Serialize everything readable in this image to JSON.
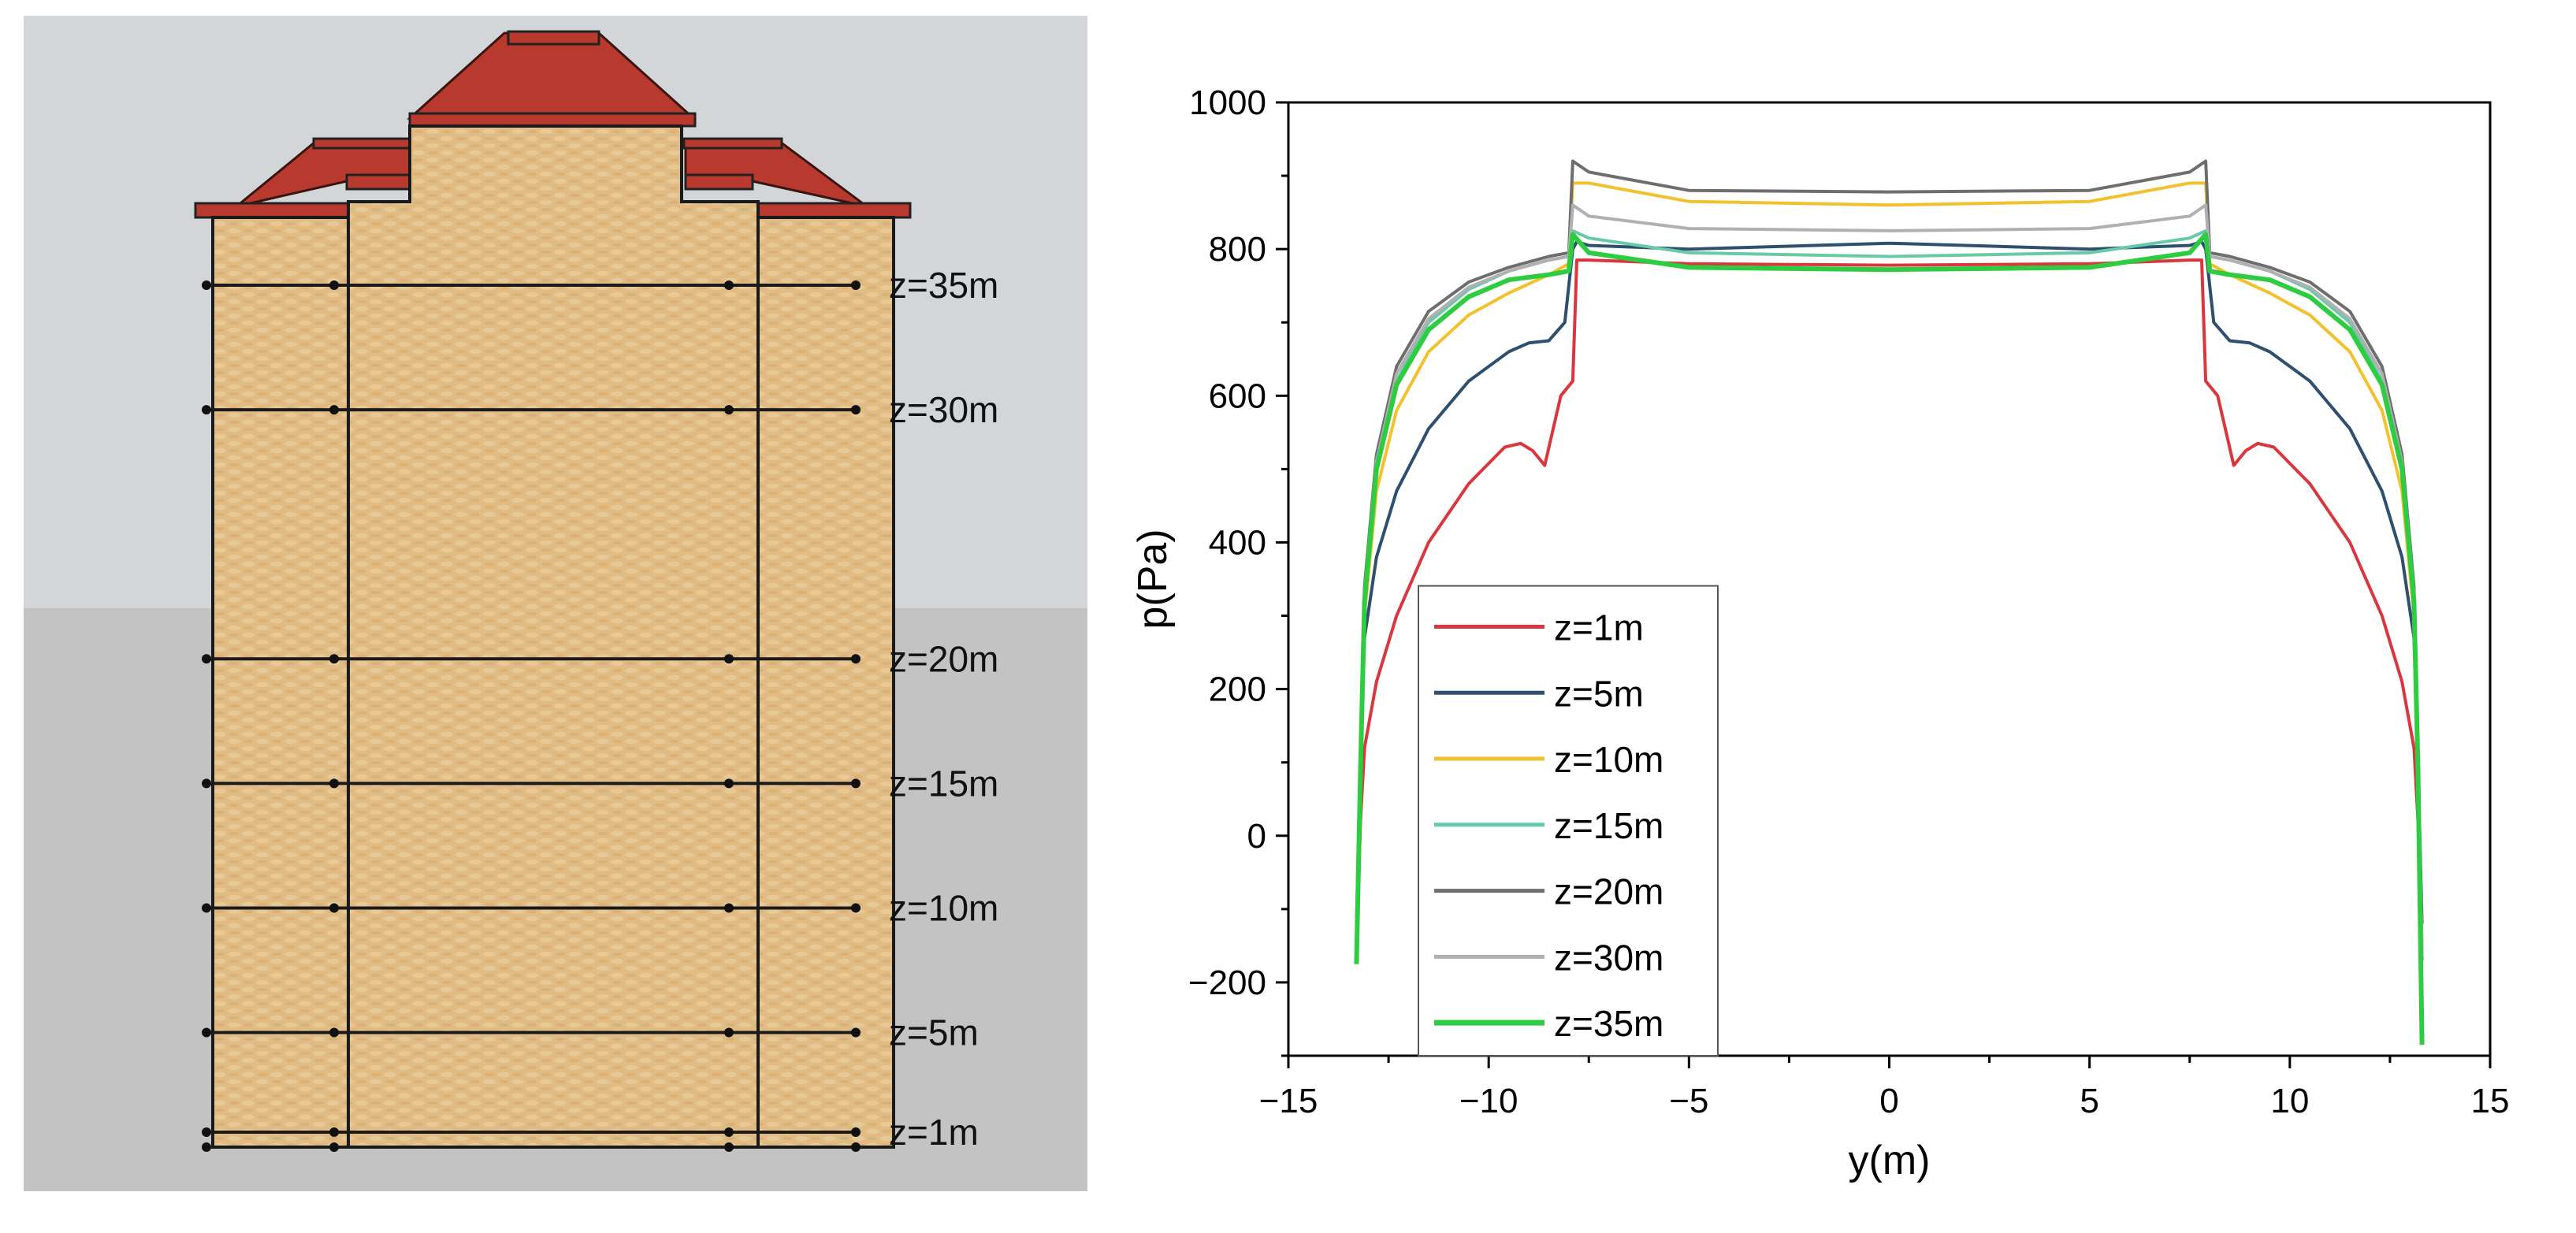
{
  "building": {
    "levels": [
      {
        "label": "z=35m",
        "z": 35
      },
      {
        "label": "z=30m",
        "z": 30
      },
      {
        "label": "z=20m",
        "z": 20
      },
      {
        "label": "z=15m",
        "z": 15
      },
      {
        "label": "z=10m",
        "z": 10
      },
      {
        "label": "z=5m",
        "z": 5
      },
      {
        "label": "z=1m",
        "z": 1
      }
    ],
    "colors": {
      "sky": "#d3d6d9",
      "ground": "#c3c3c3",
      "wall": "#e0bc84",
      "roof": "#b8392d"
    }
  },
  "chart_data": {
    "type": "line",
    "title": "",
    "xlabel": "y(m)",
    "ylabel": "p(Pa)",
    "xlim": [
      -15,
      15
    ],
    "ylim": [
      -300,
      1000
    ],
    "xticks": [
      -15,
      -10,
      -5,
      0,
      5,
      10,
      15
    ],
    "xtick_labels": [
      "−15",
      "−10",
      "−5",
      "0",
      "5",
      "10",
      "15"
    ],
    "yticks": [
      -200,
      0,
      200,
      400,
      600,
      800,
      1000
    ],
    "ytick_labels": [
      "−200",
      "0",
      "200",
      "400",
      "600",
      "800",
      "1000"
    ],
    "legend_position": "bottom-left",
    "series": [
      {
        "name": "z=1m",
        "color": "#d9363e",
        "x": [
          -13.3,
          -13.2,
          -13.1,
          -12.8,
          -12.3,
          -11.5,
          -10.5,
          -9.6,
          -9.2,
          -8.9,
          -8.6,
          -8.2,
          -7.9,
          -7.8,
          -7.5,
          -5,
          0,
          5,
          7.5,
          7.8,
          7.9,
          8.2,
          8.6,
          8.9,
          9.2,
          9.6,
          10.5,
          11.5,
          12.3,
          12.8,
          13.1,
          13.2,
          13.3
        ],
        "y": [
          -160,
          20,
          120,
          210,
          300,
          400,
          480,
          530,
          535,
          525,
          505,
          600,
          620,
          785,
          785,
          780,
          778,
          780,
          785,
          785,
          620,
          600,
          505,
          525,
          535,
          530,
          480,
          400,
          300,
          210,
          120,
          20,
          -160
        ]
      },
      {
        "name": "z=5m",
        "color": "#2e4f6e",
        "x": [
          -13.3,
          -13.2,
          -13.1,
          -12.8,
          -12.3,
          -11.5,
          -10.5,
          -9.5,
          -9,
          -8.5,
          -8.1,
          -7.9,
          -7.8,
          -7.5,
          -5,
          0,
          5,
          7.5,
          7.8,
          7.9,
          8.1,
          8.5,
          9,
          9.5,
          10.5,
          11.5,
          12.3,
          12.8,
          13.1,
          13.2,
          13.3
        ],
        "y": [
          -120,
          100,
          270,
          380,
          470,
          555,
          620,
          660,
          672,
          675,
          700,
          800,
          810,
          805,
          800,
          808,
          800,
          805,
          810,
          800,
          700,
          675,
          672,
          660,
          620,
          555,
          470,
          380,
          270,
          100,
          -120
        ]
      },
      {
        "name": "z=10m",
        "color": "#f2c12e",
        "x": [
          -13.3,
          -13.2,
          -13.1,
          -12.8,
          -12.3,
          -11.5,
          -10.5,
          -9.5,
          -8.5,
          -8.0,
          -7.9,
          -7.5,
          -5,
          0,
          5,
          7.5,
          7.9,
          8.0,
          8.5,
          9.5,
          10.5,
          11.5,
          12.3,
          12.8,
          13.1,
          13.2,
          13.3
        ],
        "y": [
          -150,
          80,
          300,
          470,
          580,
          660,
          710,
          740,
          765,
          780,
          890,
          890,
          865,
          860,
          865,
          890,
          890,
          780,
          765,
          740,
          710,
          660,
          580,
          470,
          300,
          80,
          -150
        ]
      },
      {
        "name": "z=15m",
        "color": "#66c9a8",
        "x": [
          -13.3,
          -13.2,
          -13.1,
          -12.8,
          -12.3,
          -11.5,
          -10.5,
          -9.5,
          -8.5,
          -8.0,
          -7.9,
          -7.5,
          -5,
          0,
          5,
          7.5,
          7.9,
          8.0,
          8.5,
          9.5,
          10.5,
          11.5,
          12.3,
          12.8,
          13.1,
          13.2,
          13.3
        ],
        "y": [
          -160,
          100,
          330,
          500,
          620,
          700,
          745,
          770,
          785,
          790,
          825,
          815,
          795,
          790,
          795,
          815,
          825,
          790,
          785,
          770,
          745,
          700,
          620,
          500,
          330,
          100,
          -160
        ]
      },
      {
        "name": "z=20m",
        "color": "#6e6e6e",
        "x": [
          -13.3,
          -13.2,
          -13.1,
          -12.8,
          -12.3,
          -11.5,
          -10.5,
          -9.5,
          -8.5,
          -8.0,
          -7.9,
          -7.5,
          -5,
          0,
          5,
          7.5,
          7.9,
          8.0,
          8.5,
          9.5,
          10.5,
          11.5,
          12.3,
          12.8,
          13.1,
          13.2,
          13.3
        ],
        "y": [
          -170,
          100,
          340,
          520,
          640,
          715,
          755,
          775,
          790,
          795,
          920,
          905,
          880,
          878,
          880,
          905,
          920,
          795,
          790,
          775,
          755,
          715,
          640,
          520,
          340,
          100,
          -170
        ]
      },
      {
        "name": "z=30m",
        "color": "#b0b0b0",
        "x": [
          -13.3,
          -13.2,
          -13.1,
          -12.8,
          -12.3,
          -11.5,
          -10.5,
          -9.5,
          -8.5,
          -8.0,
          -7.9,
          -7.5,
          -5,
          0,
          5,
          7.5,
          7.9,
          8.0,
          8.5,
          9.5,
          10.5,
          11.5,
          12.3,
          12.8,
          13.1,
          13.2,
          13.3
        ],
        "y": [
          -165,
          90,
          330,
          510,
          630,
          705,
          748,
          770,
          785,
          790,
          860,
          845,
          828,
          825,
          828,
          845,
          860,
          790,
          785,
          770,
          748,
          705,
          630,
          510,
          330,
          90,
          -165
        ]
      },
      {
        "name": "z=35m",
        "color": "#2ecc40",
        "x": [
          -13.3,
          -13.2,
          -13.1,
          -12.8,
          -12.3,
          -11.5,
          -10.5,
          -9.5,
          -8.5,
          -8.0,
          -7.9,
          -7.5,
          -5,
          0,
          5,
          7.5,
          7.9,
          8.0,
          8.5,
          9.5,
          10.5,
          11.5,
          12.3,
          12.8,
          13.1,
          13.2,
          13.3
        ],
        "y": [
          -175,
          90,
          320,
          500,
          615,
          690,
          735,
          758,
          765,
          770,
          820,
          795,
          775,
          772,
          775,
          795,
          820,
          770,
          765,
          758,
          735,
          690,
          615,
          500,
          320,
          90,
          -285
        ]
      }
    ]
  }
}
